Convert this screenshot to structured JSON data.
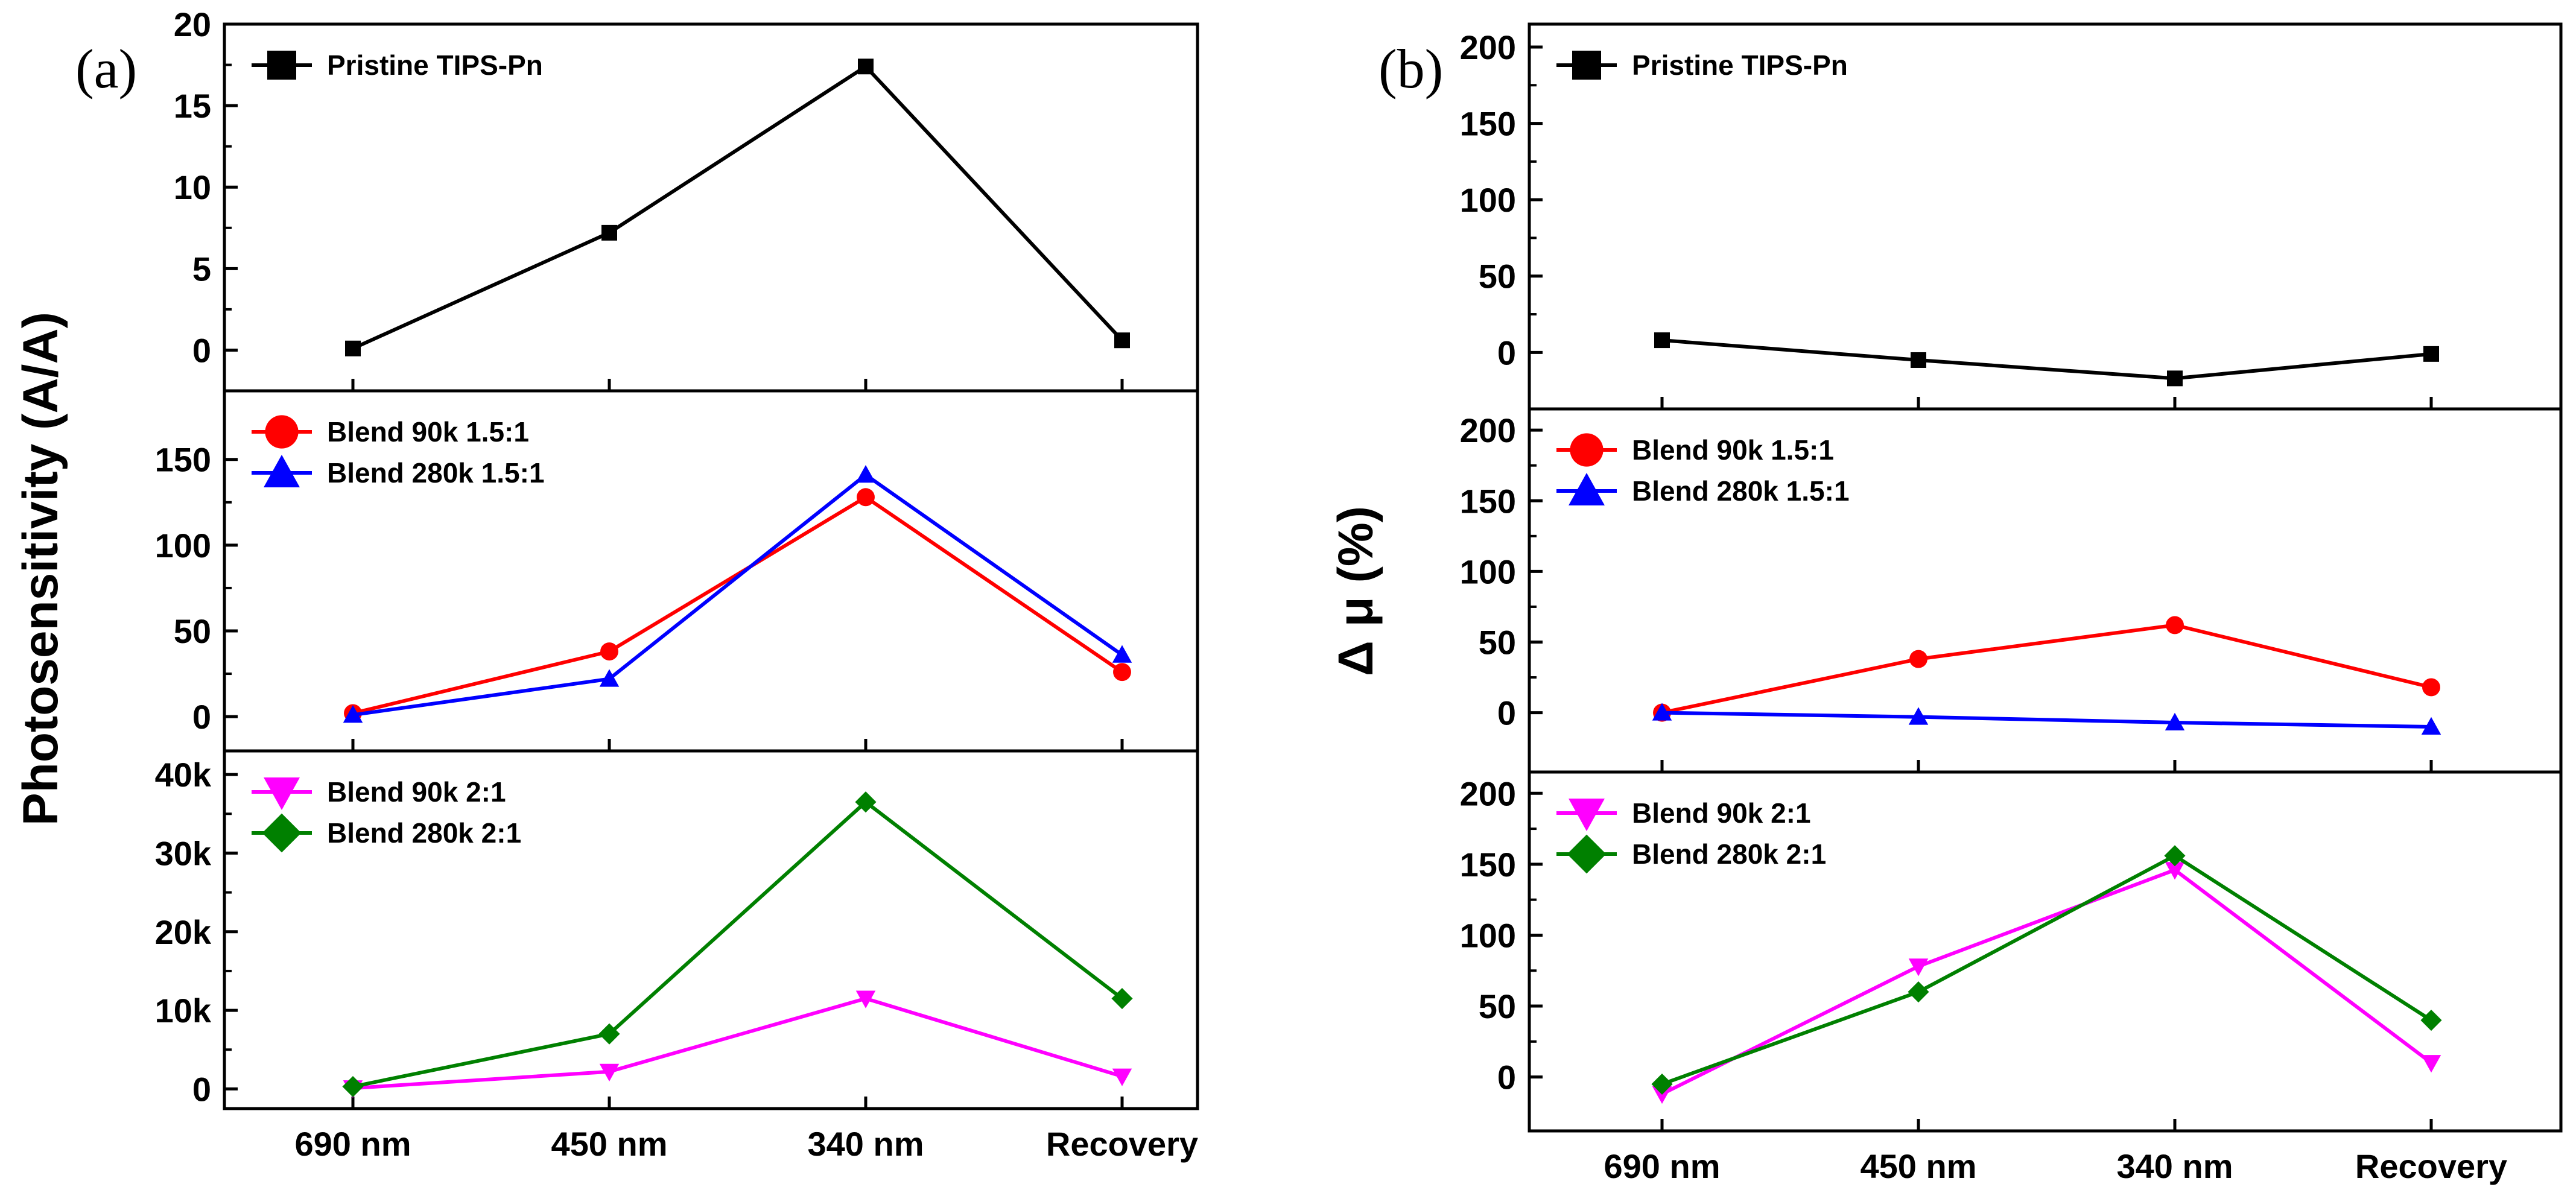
{
  "chart_data": [
    {
      "type": "line",
      "panel_label": "(a)",
      "ylabel": "Photosensitivity (A/A)",
      "categories": [
        "690 nm",
        "450 nm",
        "340 nm",
        "Recovery"
      ],
      "subplots": [
        {
          "ylim": [
            -2.5,
            20
          ],
          "yticks": [
            0,
            5,
            10,
            15,
            20
          ],
          "ytick_labels": [
            "0",
            "5",
            "10",
            "15",
            "20"
          ],
          "series": [
            {
              "name": "Pristine TIPS-Pn",
              "color": "#000000",
              "marker": "square",
              "values": [
                0.1,
                7.2,
                17.4,
                0.6
              ]
            }
          ]
        },
        {
          "ylim": [
            -20,
            190
          ],
          "yticks": [
            0,
            50,
            100,
            150
          ],
          "ytick_labels": [
            "0",
            "50",
            "100",
            "150"
          ],
          "series": [
            {
              "name": "Blend 90k 1.5:1",
              "color": "#ff0000",
              "marker": "circle",
              "values": [
                2,
                38,
                128,
                26
              ]
            },
            {
              "name": "Blend 280k 1.5:1",
              "color": "#0000ff",
              "marker": "triangle-up",
              "values": [
                1,
                22,
                141,
                36
              ]
            }
          ]
        },
        {
          "ylim": [
            -2500,
            43000
          ],
          "yticks": [
            0,
            10000,
            20000,
            30000,
            40000
          ],
          "ytick_labels": [
            "0",
            "10k",
            "20k",
            "30k",
            "40k"
          ],
          "series": [
            {
              "name": "Blend 90k 2:1",
              "color": "#ff00ff",
              "marker": "triangle-down",
              "values": [
                100,
                2200,
                11500,
                1600
              ]
            },
            {
              "name": "Blend 280k 2:1",
              "color": "#008000",
              "marker": "diamond",
              "values": [
                300,
                7000,
                36500,
                11500
              ]
            }
          ]
        }
      ]
    },
    {
      "type": "line",
      "panel_label": "(b)",
      "ylabel": "Δ μ (%)",
      "categories": [
        "690 nm",
        "450 nm",
        "340 nm",
        "Recovery"
      ],
      "subplots": [
        {
          "ylim": [
            -37,
            215
          ],
          "yticks": [
            0,
            50,
            100,
            150,
            200
          ],
          "ytick_labels": [
            "0",
            "50",
            "100",
            "150",
            "200"
          ],
          "series": [
            {
              "name": "Pristine TIPS-Pn",
              "color": "#000000",
              "marker": "square",
              "values": [
                8,
                -5,
                -17,
                -1
              ]
            }
          ]
        },
        {
          "ylim": [
            -42,
            215
          ],
          "yticks": [
            0,
            50,
            100,
            150,
            200
          ],
          "ytick_labels": [
            "0",
            "50",
            "100",
            "150",
            "200"
          ],
          "series": [
            {
              "name": "Blend 90k 1.5:1",
              "color": "#ff0000",
              "marker": "circle",
              "values": [
                0,
                38,
                62,
                18
              ]
            },
            {
              "name": "Blend 280k 1.5:1",
              "color": "#0000ff",
              "marker": "triangle-up",
              "values": [
                0,
                -3,
                -7,
                -10
              ]
            }
          ]
        },
        {
          "ylim": [
            -38,
            215
          ],
          "yticks": [
            0,
            50,
            100,
            150,
            200
          ],
          "ytick_labels": [
            "0",
            "50",
            "100",
            "150",
            "200"
          ],
          "series": [
            {
              "name": "Blend 90k 2:1",
              "color": "#ff00ff",
              "marker": "triangle-down",
              "values": [
                -12,
                78,
                146,
                10
              ]
            },
            {
              "name": "Blend 280k 2:1",
              "color": "#008000",
              "marker": "diamond",
              "values": [
                -5,
                60,
                156,
                40
              ]
            }
          ]
        }
      ]
    }
  ]
}
